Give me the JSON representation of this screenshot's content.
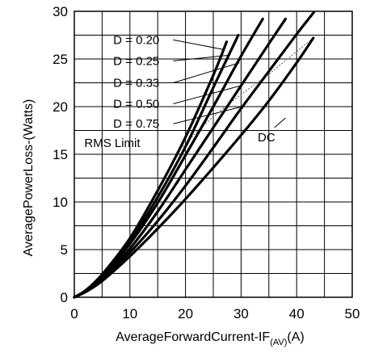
{
  "chart_data": {
    "type": "line",
    "title": "",
    "xlabel": "AverageForwardCurrent-IF",
    "xlabel_subscript": "(AV)",
    "xlabel_unit": "(A)",
    "ylabel": "AveragePowerLoss-(Watts)",
    "xlim": [
      0,
      50
    ],
    "ylim": [
      0,
      30
    ],
    "xticks": [
      0,
      10,
      20,
      30,
      40,
      50
    ],
    "yticks": [
      0,
      5,
      10,
      15,
      20,
      25,
      30
    ],
    "x_tick_labels": [
      "0",
      "10",
      "20",
      "30",
      "40",
      "50"
    ],
    "y_tick_labels": [
      "0",
      "5",
      "10",
      "15",
      "20",
      "25",
      "30"
    ],
    "grid": true,
    "series": [
      {
        "name": "D = 0.20",
        "x": [
          0,
          2,
          5,
          10,
          15,
          20,
          25,
          27.4
        ],
        "y": [
          0,
          0.7,
          2.4,
          6.2,
          11.2,
          16.8,
          23.3,
          26.8
        ]
      },
      {
        "name": "D = 0.25",
        "x": [
          0,
          2,
          5,
          10,
          15,
          20,
          25,
          29.5
        ],
        "y": [
          0,
          0.7,
          2.3,
          5.9,
          10.5,
          15.8,
          22.0,
          27.5
        ]
      },
      {
        "name": "D = 0.33",
        "x": [
          0,
          2,
          5,
          10,
          15,
          20,
          25,
          30,
          33.9
        ],
        "y": [
          0,
          0.7,
          2.2,
          5.6,
          9.9,
          14.9,
          20.0,
          25.3,
          29.2
        ]
      },
      {
        "name": "D = 0.50",
        "x": [
          0,
          2,
          5,
          10,
          15,
          20,
          25,
          30,
          35,
          38
        ],
        "y": [
          0,
          0.6,
          2.0,
          5.1,
          9.0,
          13.4,
          17.8,
          22.2,
          26.6,
          29.2
        ]
      },
      {
        "name": "D = 0.75",
        "x": [
          0,
          2,
          5,
          10,
          15,
          20,
          25,
          30,
          35,
          40,
          43.1
        ],
        "y": [
          0,
          0.6,
          1.9,
          4.7,
          8.0,
          11.7,
          15.7,
          19.8,
          23.7,
          27.6,
          29.9
        ]
      },
      {
        "name": "DC",
        "x": [
          0,
          2,
          5,
          10,
          15,
          20,
          25,
          30,
          35,
          40,
          43
        ],
        "y": [
          0,
          0.55,
          1.7,
          4.3,
          7.2,
          10.3,
          13.6,
          17.0,
          20.6,
          24.6,
          27.2
        ]
      }
    ],
    "rms_limit": {
      "name": "RMS Limit",
      "x": [
        19.5,
        23,
        27,
        31,
        35,
        39,
        43
      ],
      "y": [
        15.8,
        17.9,
        19.9,
        21.7,
        23.4,
        25.3,
        27.2
      ]
    },
    "legend_labels": [
      "D = 0.20",
      "D = 0.25",
      "D = 0.33",
      "D = 0.50",
      "D = 0.75"
    ],
    "annotations": [
      "RMS Limit",
      "DC"
    ]
  }
}
